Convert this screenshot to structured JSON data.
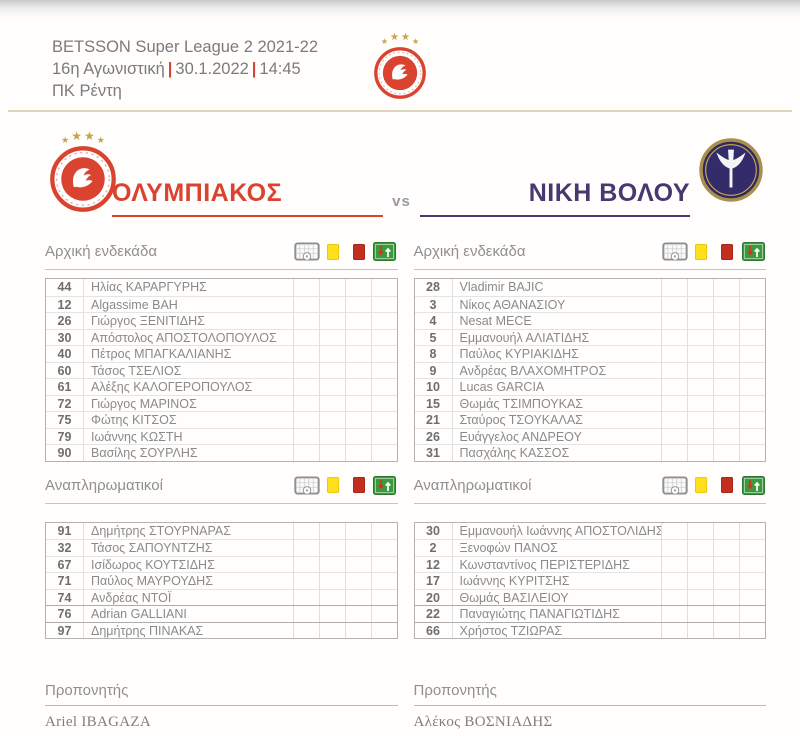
{
  "header": {
    "competition": "BETSSON Super League 2 2021-22",
    "matchday": "16η Αγωνιστική",
    "date": "30.1.2022",
    "time": "14:45",
    "venue": "ΠΚ Ρέντη",
    "separator": "|"
  },
  "banner": {
    "vs_label": "vs"
  },
  "labels": {
    "starting": "Αρχική ενδεκάδα",
    "substitutes": "Αναπληρωματικοί",
    "coach": "Προπονητής"
  },
  "legend_icons": [
    "goal-icon",
    "yellow-card-icon",
    "red-card-icon",
    "substitution-icon"
  ],
  "colors": {
    "home_accent": "#d9432f",
    "away_accent": "#46396f",
    "gold": "#c7a24a",
    "yellow_card": "#ffdf1b",
    "red_card": "#c22f21",
    "pitch_green": "#3a9b3d"
  },
  "home": {
    "name": "ΟΛΥΜΠΙΑΚΟΣ",
    "coach": "Ariel IBAGAZA",
    "starting": [
      {
        "num": "44",
        "name": "Ηλίας ΚΑΡΑΡΓΥΡΗΣ"
      },
      {
        "num": "12",
        "name": "Algassime BAH"
      },
      {
        "num": "26",
        "name": "Γιώργος ΞΕΝΙΤΙΔΗΣ"
      },
      {
        "num": "30",
        "name": "Απόστολος ΑΠΟΣΤΟΛΟΠΟΥΛΟΣ"
      },
      {
        "num": "40",
        "name": "Πέτρος ΜΠΑΓΚΑΛΙΑΝΗΣ"
      },
      {
        "num": "60",
        "name": "Τάσος ΤΣΕΛΙΟΣ"
      },
      {
        "num": "61",
        "name": "Αλέξης ΚΑΛΟΓΕΡΟΠΟΥΛΟΣ"
      },
      {
        "num": "72",
        "name": "Γιώργος ΜΑΡΙΝΟΣ"
      },
      {
        "num": "75",
        "name": "Φώτης ΚΙΤΣΟΣ"
      },
      {
        "num": "79",
        "name": "Ιωάννης ΚΩΣΤΗ"
      },
      {
        "num": "90",
        "name": "Βασίλης ΣΟΥΡΛΗΣ"
      }
    ],
    "substitutes": [
      {
        "num": "91",
        "name": "Δημήτρης ΣΤΟΥΡΝΑΡΑΣ"
      },
      {
        "num": "32",
        "name": "Τάσος ΣΑΠΟΥΝΤΖΗΣ"
      },
      {
        "num": "67",
        "name": "Ισίδωρος ΚΟΥΤΣΙΔΗΣ"
      },
      {
        "num": "71",
        "name": "Παύλος ΜΑΥΡΟΥΔΗΣ"
      },
      {
        "num": "74",
        "name": "Ανδρέας ΝΤΟΪ"
      },
      {
        "num": "76",
        "name": "Adrian GALLIANI"
      },
      {
        "num": "97",
        "name": "Δημήτρης ΠΙΝΑΚΑΣ"
      }
    ]
  },
  "away": {
    "name": "ΝΙΚΗ ΒΟΛΟΥ",
    "coach": "Αλέκος ΒΟΣΝΙΑΔΗΣ",
    "starting": [
      {
        "num": "28",
        "name": "Vladimir BAJIC"
      },
      {
        "num": "3",
        "name": "Νίκος ΑΘΑΝΑΣΙΟΥ"
      },
      {
        "num": "4",
        "name": "Nesat MECE"
      },
      {
        "num": "5",
        "name": "Εμμανουήλ ΑΛΙΑΤΙΔΗΣ"
      },
      {
        "num": "8",
        "name": "Παύλος ΚΥΡΙΑΚΙΔΗΣ"
      },
      {
        "num": "9",
        "name": "Ανδρέας ΒΛΑΧΟΜΗΤΡΟΣ"
      },
      {
        "num": "10",
        "name": "Lucas GARCIA"
      },
      {
        "num": "15",
        "name": "Θωμάς ΤΣΙΜΠΟΥΚΑΣ"
      },
      {
        "num": "21",
        "name": "Σταύρος ΤΣΟΥΚΑΛΑΣ"
      },
      {
        "num": "26",
        "name": "Ευάγγελος ΑΝΔΡΕΟΥ"
      },
      {
        "num": "31",
        "name": "Πασχάλης ΚΑΣΣΟΣ"
      }
    ],
    "substitutes": [
      {
        "num": "30",
        "name": "Εμμανουήλ Ιωάννης ΑΠΟΣΤΟΛΙΔΗΣ"
      },
      {
        "num": "2",
        "name": "Ξενοφών ΠΑΝΟΣ"
      },
      {
        "num": "12",
        "name": "Κωνσταντίνος ΠΕΡΙΣΤΕΡΙΔΗΣ"
      },
      {
        "num": "17",
        "name": "Ιωάννης ΚΥΡΙΤΣΗΣ"
      },
      {
        "num": "20",
        "name": "Θωμάς ΒΑΣΙΛΕΙΟΥ"
      },
      {
        "num": "22",
        "name": "Παναγιώτης ΠΑΝΑΓΙΩΤΙΔΗΣ"
      },
      {
        "num": "66",
        "name": "Χρήστος ΤΖΙΩΡΑΣ"
      }
    ]
  }
}
